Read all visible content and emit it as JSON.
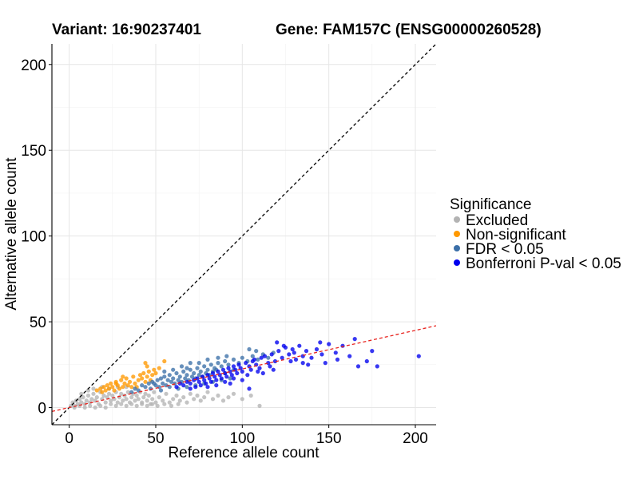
{
  "titles": {
    "variant": "Variant: 16:90237401",
    "gene": "Gene: FAM157C (ENSG00000260528)"
  },
  "chart_data": {
    "type": "scatter",
    "xlabel": "Reference allele count",
    "ylabel": "Alternative allele count",
    "xlim": [
      -10,
      212
    ],
    "ylim": [
      -10,
      212
    ],
    "xticks": [
      0,
      50,
      100,
      150,
      200
    ],
    "yticks": [
      0,
      50,
      100,
      150,
      200
    ],
    "grid": true,
    "legend": {
      "title": "Significance",
      "placement": "right",
      "entries": [
        "Excluded",
        "Non-significant",
        "FDR < 0.05",
        "Bonferroni P-val < 0.05"
      ]
    },
    "colors": {
      "Excluded": "#b3b3b3",
      "Non-significant": "#ff9900",
      "FDR < 0.05": "#3b6fa8",
      "Bonferroni P-val < 0.05": "#0000ee",
      "identity_line": "#000000",
      "fit_line": "#e8231e"
    },
    "reference_lines": [
      {
        "type": "identity",
        "slope": 1,
        "intercept": 0,
        "style": "dashed",
        "color": "#000000"
      },
      {
        "type": "fit",
        "slope": 0.225,
        "intercept": 0,
        "style": "dashed",
        "color": "#e8231e"
      }
    ],
    "series": [
      {
        "name": "Excluded",
        "points": [
          [
            1,
            1
          ],
          [
            2,
            3
          ],
          [
            3,
            1
          ],
          [
            4,
            4
          ],
          [
            5,
            2
          ],
          [
            6,
            5
          ],
          [
            7,
            3
          ],
          [
            8,
            6
          ],
          [
            9,
            2
          ],
          [
            10,
            4
          ],
          [
            11,
            7
          ],
          [
            12,
            3
          ],
          [
            13,
            5
          ],
          [
            14,
            8
          ],
          [
            15,
            4
          ],
          [
            16,
            6
          ],
          [
            17,
            2
          ],
          [
            18,
            9
          ],
          [
            19,
            5
          ],
          [
            20,
            7
          ],
          [
            21,
            3
          ],
          [
            22,
            6
          ],
          [
            23,
            8
          ],
          [
            24,
            4
          ],
          [
            25,
            7
          ],
          [
            26,
            5
          ],
          [
            27,
            9
          ],
          [
            28,
            3
          ],
          [
            29,
            6
          ],
          [
            30,
            8
          ],
          [
            31,
            4
          ],
          [
            32,
            7
          ],
          [
            33,
            5
          ],
          [
            34,
            9
          ],
          [
            35,
            3
          ],
          [
            36,
            6
          ],
          [
            37,
            8
          ],
          [
            38,
            4
          ],
          [
            39,
            7
          ],
          [
            40,
            5
          ],
          [
            41,
            9
          ],
          [
            42,
            3
          ],
          [
            43,
            6
          ],
          [
            44,
            8
          ],
          [
            45,
            4
          ],
          [
            46,
            7
          ],
          [
            47,
            2
          ],
          [
            48,
            5
          ],
          [
            49,
            9
          ],
          [
            50,
            3
          ],
          [
            52,
            6
          ],
          [
            54,
            4
          ],
          [
            56,
            8
          ],
          [
            58,
            3
          ],
          [
            60,
            5
          ],
          [
            62,
            7
          ],
          [
            64,
            4
          ],
          [
            66,
            6
          ],
          [
            68,
            3
          ],
          [
            70,
            8
          ],
          [
            72,
            5
          ],
          [
            74,
            7
          ],
          [
            76,
            4
          ],
          [
            78,
            6
          ],
          [
            80,
            9
          ],
          [
            83,
            5
          ],
          [
            86,
            7
          ],
          [
            89,
            4
          ],
          [
            92,
            6
          ],
          [
            95,
            8
          ],
          [
            100,
            5
          ],
          [
            105,
            7
          ],
          [
            110,
            1
          ],
          [
            3,
            0
          ],
          [
            6,
            1
          ],
          [
            9,
            0
          ],
          [
            12,
            1
          ],
          [
            15,
            0
          ],
          [
            18,
            1
          ],
          [
            21,
            0
          ],
          [
            24,
            2
          ],
          [
            27,
            1
          ],
          [
            30,
            2
          ],
          [
            33,
            1
          ],
          [
            36,
            2
          ],
          [
            39,
            1
          ],
          [
            42,
            2
          ],
          [
            45,
            1
          ],
          [
            48,
            2
          ],
          [
            51,
            1
          ],
          [
            55,
            2
          ],
          [
            59,
            1
          ],
          [
            63,
            2
          ],
          [
            7,
            8
          ],
          [
            11,
            10
          ],
          [
            14,
            11
          ],
          [
            19,
            12
          ],
          [
            23,
            11
          ],
          [
            28,
            12
          ],
          [
            33,
            12
          ]
        ]
      },
      {
        "name": "Non-significant",
        "points": [
          [
            16,
            10
          ],
          [
            18,
            11
          ],
          [
            19,
            9
          ],
          [
            20,
            12
          ],
          [
            21,
            10
          ],
          [
            22,
            13
          ],
          [
            23,
            11
          ],
          [
            24,
            14
          ],
          [
            25,
            12
          ],
          [
            26,
            10
          ],
          [
            27,
            15
          ],
          [
            28,
            13
          ],
          [
            29,
            11
          ],
          [
            30,
            16
          ],
          [
            31,
            12
          ],
          [
            32,
            14
          ],
          [
            33,
            17
          ],
          [
            34,
            13
          ],
          [
            35,
            15
          ],
          [
            36,
            12
          ],
          [
            37,
            18
          ],
          [
            38,
            14
          ],
          [
            40,
            16
          ],
          [
            41,
            19
          ],
          [
            39,
            12
          ],
          [
            42,
            17
          ],
          [
            43,
            20
          ],
          [
            44,
            15
          ],
          [
            45,
            18
          ],
          [
            46,
            21
          ],
          [
            47,
            16
          ],
          [
            48,
            19
          ],
          [
            49,
            22
          ],
          [
            45,
            24
          ],
          [
            44,
            26
          ],
          [
            55,
            27
          ],
          [
            50,
            20
          ],
          [
            52,
            23
          ],
          [
            27,
            14
          ],
          [
            31,
            18
          ]
        ]
      },
      {
        "name": "FDR < 0.05",
        "points": [
          [
            36,
            9
          ],
          [
            38,
            11
          ],
          [
            40,
            10
          ],
          [
            42,
            13
          ],
          [
            44,
            12
          ],
          [
            46,
            14
          ],
          [
            47,
            11
          ],
          [
            48,
            15
          ],
          [
            50,
            13
          ],
          [
            51,
            16
          ],
          [
            52,
            12
          ],
          [
            53,
            17
          ],
          [
            54,
            14
          ],
          [
            55,
            18
          ],
          [
            56,
            13
          ],
          [
            57,
            16
          ],
          [
            58,
            19
          ],
          [
            59,
            15
          ],
          [
            60,
            17
          ],
          [
            61,
            14
          ],
          [
            62,
            20
          ],
          [
            63,
            16
          ],
          [
            64,
            18
          ],
          [
            65,
            15
          ],
          [
            66,
            21
          ],
          [
            67,
            17
          ],
          [
            68,
            19
          ],
          [
            69,
            16
          ],
          [
            70,
            22
          ],
          [
            71,
            18
          ],
          [
            72,
            20
          ],
          [
            73,
            17
          ],
          [
            74,
            23
          ],
          [
            75,
            19
          ],
          [
            76,
            21
          ],
          [
            77,
            18
          ],
          [
            78,
            24
          ],
          [
            79,
            20
          ],
          [
            80,
            22
          ],
          [
            81,
            19
          ],
          [
            82,
            25
          ],
          [
            83,
            21
          ],
          [
            84,
            23
          ],
          [
            86,
            26
          ],
          [
            88,
            24
          ],
          [
            90,
            27
          ],
          [
            92,
            25
          ],
          [
            95,
            28
          ],
          [
            98,
            26
          ],
          [
            100,
            29
          ],
          [
            103,
            27
          ],
          [
            106,
            30
          ],
          [
            109,
            28
          ],
          [
            112,
            31
          ],
          [
            115,
            29
          ],
          [
            118,
            32
          ],
          [
            85,
            22
          ],
          [
            80,
            28
          ],
          [
            70,
            26
          ],
          [
            60,
            22
          ],
          [
            55,
            21
          ],
          [
            65,
            24
          ],
          [
            75,
            26
          ],
          [
            90,
            20
          ],
          [
            95,
            22
          ],
          [
            49,
            14
          ],
          [
            53,
            10
          ],
          [
            58,
            12
          ],
          [
            63,
            11
          ],
          [
            68,
            12
          ],
          [
            73,
            13
          ],
          [
            78,
            14
          ],
          [
            83,
            15
          ],
          [
            88,
            16
          ],
          [
            93,
            17
          ],
          [
            86,
            29
          ],
          [
            91,
            30
          ],
          [
            104,
            34
          ],
          [
            108,
            33
          ],
          [
            68,
            23
          ]
        ]
      },
      {
        "name": "Bonferroni P-val < 0.05",
        "points": [
          [
            62,
            12
          ],
          [
            64,
            14
          ],
          [
            66,
            13
          ],
          [
            68,
            15
          ],
          [
            70,
            14
          ],
          [
            72,
            16
          ],
          [
            73,
            12
          ],
          [
            74,
            17
          ],
          [
            75,
            15
          ],
          [
            76,
            13
          ],
          [
            77,
            18
          ],
          [
            78,
            16
          ],
          [
            79,
            14
          ],
          [
            80,
            19
          ],
          [
            81,
            17
          ],
          [
            82,
            15
          ],
          [
            83,
            20
          ],
          [
            84,
            18
          ],
          [
            85,
            16
          ],
          [
            86,
            21
          ],
          [
            87,
            19
          ],
          [
            88,
            17
          ],
          [
            89,
            22
          ],
          [
            90,
            20
          ],
          [
            91,
            18
          ],
          [
            92,
            23
          ],
          [
            93,
            21
          ],
          [
            94,
            19
          ],
          [
            95,
            24
          ],
          [
            96,
            22
          ],
          [
            97,
            20
          ],
          [
            98,
            25
          ],
          [
            99,
            23
          ],
          [
            100,
            21
          ],
          [
            102,
            26
          ],
          [
            104,
            24
          ],
          [
            105,
            22
          ],
          [
            106,
            27
          ],
          [
            108,
            25
          ],
          [
            110,
            23
          ],
          [
            107,
            28
          ],
          [
            111,
            29
          ],
          [
            113,
            30
          ],
          [
            115,
            26
          ],
          [
            117,
            31
          ],
          [
            119,
            27
          ],
          [
            121,
            33
          ],
          [
            123,
            29
          ],
          [
            125,
            35
          ],
          [
            127,
            31
          ],
          [
            129,
            34
          ],
          [
            131,
            28
          ],
          [
            133,
            36
          ],
          [
            135,
            30
          ],
          [
            137,
            33
          ],
          [
            140,
            29
          ],
          [
            143,
            34
          ],
          [
            146,
            31
          ],
          [
            150,
            37
          ],
          [
            154,
            32
          ],
          [
            158,
            36
          ],
          [
            162,
            30
          ],
          [
            165,
            40
          ],
          [
            167,
            24
          ],
          [
            172,
            27
          ],
          [
            175,
            33
          ],
          [
            178,
            24
          ],
          [
            202,
            30
          ],
          [
            120,
            38
          ],
          [
            124,
            36
          ],
          [
            130,
            32
          ],
          [
            145,
            38
          ],
          [
            155,
            28
          ],
          [
            138,
            25
          ],
          [
            148,
            26
          ],
          [
            112,
            20
          ],
          [
            118,
            22
          ],
          [
            128,
            27
          ],
          [
            100,
            16
          ],
          [
            95,
            17
          ],
          [
            103,
            19
          ],
          [
            109,
            21
          ],
          [
            116,
            24
          ],
          [
            85,
            13
          ],
          [
            90,
            15
          ],
          [
            80,
            12
          ],
          [
            70,
            11
          ],
          [
            104,
            11
          ],
          [
            93,
            14
          ],
          [
            135,
            26
          ]
        ]
      }
    ]
  }
}
